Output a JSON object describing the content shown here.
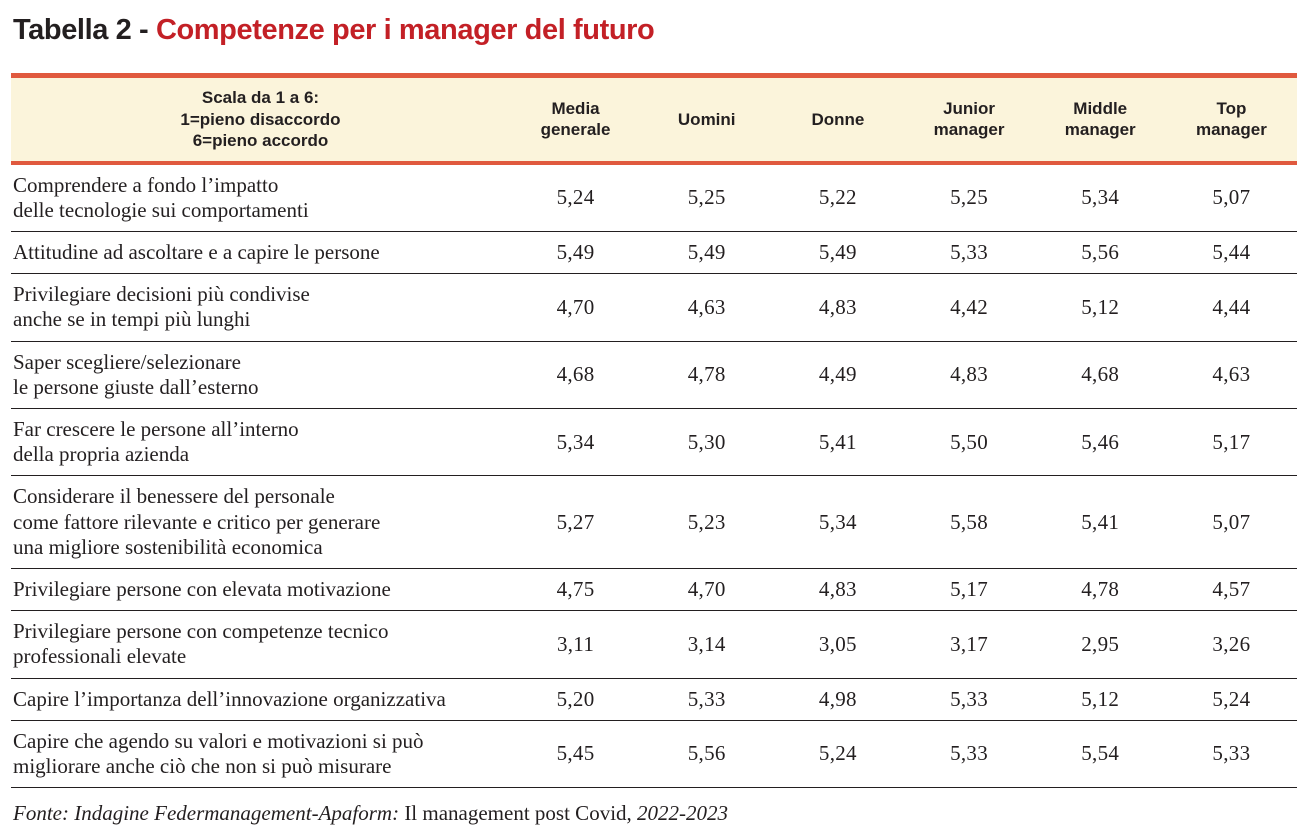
{
  "title": {
    "prefix": "Tabella 2 - ",
    "highlight": "Competenze per i manager del futuro"
  },
  "table": {
    "scale_note": "Scala da 1 a 6:\n1=pieno disaccordo\n6=pieno accordo",
    "columns": [
      "Media\ngenerale",
      "Uomini",
      "Donne",
      "Junior\nmanager",
      "Middle\nmanager",
      "Top\nmanager"
    ],
    "rows": [
      {
        "label": "Comprendere a fondo l’impatto\ndelle tecnologie sui comportamenti",
        "values": [
          "5,24",
          "5,25",
          "5,22",
          "5,25",
          "5,34",
          "5,07"
        ]
      },
      {
        "label": "Attitudine ad ascoltare e a capire le persone",
        "values": [
          "5,49",
          "5,49",
          "5,49",
          "5,33",
          "5,56",
          "5,44"
        ]
      },
      {
        "label": "Privilegiare decisioni più condivise\nanche se in tempi più lunghi",
        "values": [
          "4,70",
          "4,63",
          "4,83",
          "4,42",
          "5,12",
          "4,44"
        ]
      },
      {
        "label": "Saper scegliere/selezionare\nle persone giuste dall’esterno",
        "values": [
          "4,68",
          "4,78",
          "4,49",
          "4,83",
          "4,68",
          "4,63"
        ]
      },
      {
        "label": "Far crescere le persone all’interno\ndella propria azienda",
        "values": [
          "5,34",
          "5,30",
          "5,41",
          "5,50",
          "5,46",
          "5,17"
        ]
      },
      {
        "label": "Considerare il benessere del personale\ncome fattore rilevante e critico per generare\nuna migliore sostenibilità economica",
        "values": [
          "5,27",
          "5,23",
          "5,34",
          "5,58",
          "5,41",
          "5,07"
        ]
      },
      {
        "label": "Privilegiare persone con elevata motivazione",
        "values": [
          "4,75",
          "4,70",
          "4,83",
          "5,17",
          "4,78",
          "4,57"
        ]
      },
      {
        "label": "Privilegiare persone con competenze tecnico\nprofessionali elevate",
        "values": [
          "3,11",
          "3,14",
          "3,05",
          "3,17",
          "2,95",
          "3,26"
        ]
      },
      {
        "label": "Capire l’importanza dell’innovazione organizzativa",
        "values": [
          "5,20",
          "5,33",
          "4,98",
          "5,33",
          "5,12",
          "5,24"
        ]
      },
      {
        "label": "Capire che agendo su valori e motivazioni si può\nmigliorare anche ciò che non si può misurare",
        "values": [
          "5,45",
          "5,56",
          "5,24",
          "5,33",
          "5,54",
          "5,33"
        ]
      }
    ]
  },
  "footer": {
    "part1_italic": "Fonte: Indagine Federmanagement-Apaform:",
    "part2_regular": " Il management post Covid, ",
    "part3_italic": "2022-2023"
  },
  "colors": {
    "accent_border": "#e0593e",
    "header_background": "#fbf4db",
    "title_red": "#c32026",
    "text": "#231f20"
  }
}
